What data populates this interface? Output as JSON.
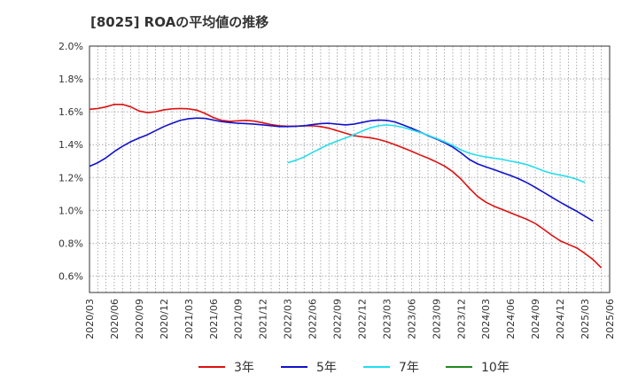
{
  "chart_data": {
    "type": "line",
    "title": "[8025]  ROAの平均値の推移",
    "xlabel": "",
    "ylabel": "",
    "ylim": [
      0.5,
      2.0
    ],
    "yticks": [
      0.6,
      0.8,
      1.0,
      1.2,
      1.4,
      1.6,
      1.8,
      2.0
    ],
    "ytick_labels": [
      "0.6%",
      "0.8%",
      "1.0%",
      "1.2%",
      "1.4%",
      "1.6%",
      "1.8%",
      "2.0%"
    ],
    "xtick_labels": [
      "2020/03",
      "2020/06",
      "2020/09",
      "2020/12",
      "2021/03",
      "2021/06",
      "2021/09",
      "2021/12",
      "2022/03",
      "2022/06",
      "2022/09",
      "2022/12",
      "2023/03",
      "2023/06",
      "2023/09",
      "2023/12",
      "2024/03",
      "2024/06",
      "2024/09",
      "2024/12",
      "2025/03",
      "2025/06"
    ],
    "grid": true,
    "legend_position": "bottom",
    "series": [
      {
        "name": "3年",
        "color": "#dd1111",
        "start": "2020/03",
        "values": [
          1.615,
          1.62,
          1.63,
          1.645,
          1.645,
          1.63,
          1.605,
          1.595,
          1.6,
          1.612,
          1.618,
          1.62,
          1.618,
          1.61,
          1.59,
          1.565,
          1.548,
          1.542,
          1.545,
          1.548,
          1.543,
          1.533,
          1.522,
          1.515,
          1.512,
          1.512,
          1.515,
          1.515,
          1.51,
          1.5,
          1.485,
          1.47,
          1.455,
          1.448,
          1.442,
          1.432,
          1.418,
          1.4,
          1.38,
          1.36,
          1.338,
          1.318,
          1.295,
          1.27,
          1.235,
          1.19,
          1.135,
          1.085,
          1.05,
          1.025,
          1.005,
          0.985,
          0.965,
          0.945,
          0.92,
          0.885,
          0.848,
          0.815,
          0.793,
          0.772,
          0.738,
          0.7,
          0.65
        ]
      },
      {
        "name": "5年",
        "color": "#1111cc",
        "start": "2020/03",
        "values": [
          1.268,
          1.29,
          1.32,
          1.358,
          1.39,
          1.418,
          1.44,
          1.46,
          1.485,
          1.51,
          1.53,
          1.548,
          1.558,
          1.562,
          1.56,
          1.55,
          1.54,
          1.535,
          1.53,
          1.528,
          1.525,
          1.52,
          1.515,
          1.51,
          1.51,
          1.512,
          1.515,
          1.522,
          1.528,
          1.53,
          1.525,
          1.52,
          1.525,
          1.535,
          1.545,
          1.55,
          1.548,
          1.538,
          1.52,
          1.5,
          1.478,
          1.455,
          1.435,
          1.412,
          1.385,
          1.35,
          1.31,
          1.283,
          1.265,
          1.248,
          1.23,
          1.212,
          1.192,
          1.168,
          1.14,
          1.11,
          1.08,
          1.05,
          1.022,
          0.995,
          0.965,
          0.935
        ]
      },
      {
        "name": "7年",
        "color": "#22ddee",
        "start": "2022/03",
        "values": [
          1.29,
          1.305,
          1.325,
          1.352,
          1.378,
          1.402,
          1.422,
          1.44,
          1.46,
          1.482,
          1.502,
          1.515,
          1.52,
          1.515,
          1.505,
          1.49,
          1.475,
          1.457,
          1.438,
          1.418,
          1.395,
          1.368,
          1.348,
          1.335,
          1.325,
          1.318,
          1.31,
          1.3,
          1.29,
          1.278,
          1.26,
          1.24,
          1.225,
          1.215,
          1.205,
          1.19,
          1.17
        ]
      },
      {
        "name": "10年",
        "color": "#228822",
        "start": "2025/03",
        "values": []
      }
    ]
  }
}
